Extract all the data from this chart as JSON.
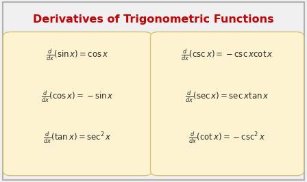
{
  "title": "Derivatives of Trigonometric Functions",
  "title_color": "#cc0000",
  "title_fontsize": 11.5,
  "background_color": "#f0f0f0",
  "box_color": "#fdf3d0",
  "box_edge_color": "#d4c47a",
  "text_color": "#2a2a2a",
  "left_formulas": [
    "\\frac{d}{dx}(\\sin x) = \\cos x",
    "\\frac{d}{dx}(\\cos x) = -\\sin x",
    "\\frac{d}{dx}(\\tan x) = \\sec^2 x"
  ],
  "right_formulas": [
    "\\frac{d}{dx}(\\csc x) = -\\csc x\\cot x",
    "\\frac{d}{dx}(\\sec x) = \\sec x\\tan x",
    "\\frac{d}{dx}(\\cot x) = -\\csc^2 x"
  ],
  "figsize": [
    4.48,
    2.66
  ],
  "dpi": 100
}
